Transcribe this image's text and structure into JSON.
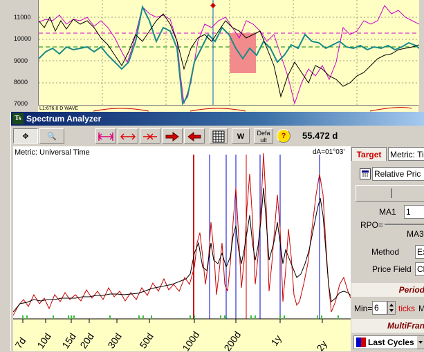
{
  "top_chart": {
    "y_labels": [
      "11000",
      "10000",
      "9000",
      "8000",
      "7000"
    ],
    "strip_text": "L1:676.6 D WAVE"
  },
  "window": {
    "title": "Spectrum Analyzer",
    "period_readout": "55.472 d",
    "toolbar": {
      "select_label": "✥",
      "zoom_label": "🔍",
      "w_label": "W",
      "default_label": "Defa ult",
      "help_label": "?"
    }
  },
  "spectrum": {
    "metric_label": "Metric: Universal Time",
    "da_label": "dA=01°03'",
    "x_ticks": [
      "7d",
      "10d",
      "15d",
      "20d",
      "30d",
      "50d",
      "100d",
      "200d",
      "1y",
      "2y"
    ]
  },
  "right_panel": {
    "tab_target": "Target",
    "tab_metric": "Metric: Ti",
    "relative_price": "Relative Pric",
    "ma1_label": "MA1",
    "ma1_value": "1",
    "rpo_label": "RPO=",
    "ma3_label": "MA3",
    "method_label": "Method",
    "method_value": "Ex",
    "price_field_label": "Price Field",
    "price_field_value": "Cl",
    "period_header": "Period",
    "min_label": "Min=",
    "min_value": "6",
    "ticks_label": "ticks",
    "ticks_suffix": "M",
    "multiframe_header": "MultiFran",
    "last_cycles": "Last Cycles"
  },
  "colors": {
    "chart_bg": "#ffffc4",
    "spectrum_red": "#cc0000",
    "marker_blue": "#0000cc",
    "title_start": "#0a246a"
  }
}
